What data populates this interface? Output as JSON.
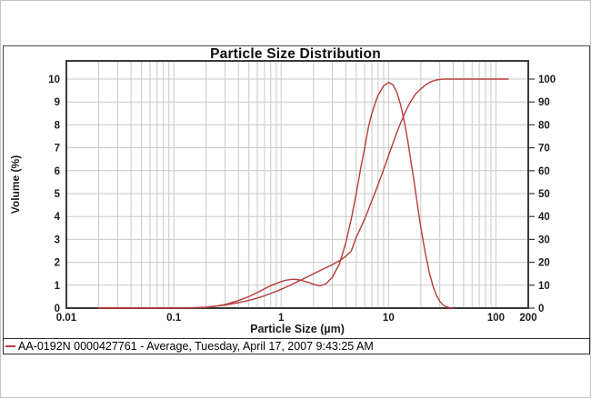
{
  "chart": {
    "title": "Particle Size Distribution",
    "x_axis": {
      "label": "Particle Size (µm)",
      "scale": "log",
      "min": 0.01,
      "max": 200,
      "tick_values": [
        0.01,
        0.1,
        1,
        10,
        100,
        200
      ],
      "tick_labels": [
        "0.01",
        "0.1",
        "1",
        "10",
        "100",
        "200"
      ]
    },
    "y_axis_left": {
      "label": "Volume (%)",
      "min": 0,
      "max": 10,
      "tick_values": [
        0,
        1,
        2,
        3,
        4,
        5,
        6,
        7,
        8,
        9,
        10
      ]
    },
    "y_axis_right": {
      "min": 0,
      "max": 100,
      "tick_values": [
        0,
        10,
        20,
        30,
        40,
        50,
        60,
        70,
        80,
        90,
        100
      ]
    },
    "grid_color": "#c9c9c9",
    "frame_color": "#3a3a3a",
    "series_color": "#b83b3b"
  },
  "legend": {
    "swatch_color": "#b83b3b",
    "label": "AA-0192N 0000427761 - Average, Tuesday, April 17, 2007 9:43:25 AM"
  },
  "chart_data": {
    "type": "line",
    "title": "Particle Size Distribution",
    "xlabel": "Particle Size (µm)",
    "ylabel": "Volume (%)",
    "x_scale": "log",
    "xlim": [
      0.01,
      200
    ],
    "ylim_left": [
      0,
      10.8
    ],
    "ylim_right": [
      0,
      108
    ],
    "grid": true,
    "legend_position": "bottom",
    "series": [
      {
        "name": "volume-density",
        "y_axis": "left",
        "points": [
          [
            0.02,
            0
          ],
          [
            0.05,
            0
          ],
          [
            0.1,
            0
          ],
          [
            0.15,
            0.01
          ],
          [
            0.2,
            0.03
          ],
          [
            0.25,
            0.09
          ],
          [
            0.3,
            0.16
          ],
          [
            0.35,
            0.25
          ],
          [
            0.4,
            0.33
          ],
          [
            0.5,
            0.5
          ],
          [
            0.6,
            0.68
          ],
          [
            0.7,
            0.84
          ],
          [
            0.8,
            0.98
          ],
          [
            0.9,
            1.08
          ],
          [
            1.0,
            1.16
          ],
          [
            1.1,
            1.22
          ],
          [
            1.3,
            1.26
          ],
          [
            1.5,
            1.23
          ],
          [
            1.8,
            1.12
          ],
          [
            2.0,
            1.04
          ],
          [
            2.3,
            0.97
          ],
          [
            2.6,
            1.05
          ],
          [
            3.0,
            1.35
          ],
          [
            3.5,
            1.95
          ],
          [
            4.0,
            2.85
          ],
          [
            4.5,
            3.9
          ],
          [
            5.0,
            5.0
          ],
          [
            5.5,
            6.1
          ],
          [
            6.0,
            7.0
          ],
          [
            6.5,
            7.9
          ],
          [
            7.0,
            8.5
          ],
          [
            7.5,
            8.95
          ],
          [
            8.0,
            9.3
          ],
          [
            9.0,
            9.7
          ],
          [
            10.0,
            9.85
          ],
          [
            11.0,
            9.75
          ],
          [
            12.0,
            9.4
          ],
          [
            13.0,
            8.85
          ],
          [
            14.0,
            8.15
          ],
          [
            15.0,
            7.4
          ],
          [
            16.0,
            6.55
          ],
          [
            17.0,
            5.75
          ],
          [
            18.0,
            4.95
          ],
          [
            20.0,
            3.5
          ],
          [
            22.0,
            2.4
          ],
          [
            24.0,
            1.55
          ],
          [
            26.0,
            0.95
          ],
          [
            28.0,
            0.55
          ],
          [
            30.0,
            0.3
          ],
          [
            32.0,
            0.15
          ],
          [
            34.0,
            0.07
          ],
          [
            36.0,
            0.03
          ],
          [
            38.0,
            0.01
          ],
          [
            40.0,
            0
          ]
        ]
      },
      {
        "name": "cumulative-volume-undersize",
        "y_axis": "right",
        "points": [
          [
            0.02,
            0
          ],
          [
            0.05,
            0
          ],
          [
            0.1,
            0
          ],
          [
            0.15,
            0.1
          ],
          [
            0.2,
            0.4
          ],
          [
            0.3,
            1.3
          ],
          [
            0.4,
            2.4
          ],
          [
            0.5,
            3.4
          ],
          [
            0.6,
            4.4
          ],
          [
            0.7,
            5.4
          ],
          [
            0.8,
            6.4
          ],
          [
            0.9,
            7.3
          ],
          [
            1.0,
            8.2
          ],
          [
            1.2,
            9.9
          ],
          [
            1.4,
            11.4
          ],
          [
            1.6,
            12.7
          ],
          [
            1.8,
            13.9
          ],
          [
            2.0,
            15
          ],
          [
            2.3,
            16.4
          ],
          [
            2.6,
            17.6
          ],
          [
            3.0,
            19
          ],
          [
            3.5,
            20.7
          ],
          [
            4.0,
            22.6
          ],
          [
            4.5,
            25
          ],
          [
            5.0,
            31
          ],
          [
            5.5,
            35
          ],
          [
            6.0,
            39
          ],
          [
            6.5,
            43
          ],
          [
            7.0,
            47
          ],
          [
            7.5,
            50.5
          ],
          [
            8.0,
            54
          ],
          [
            9.0,
            60.5
          ],
          [
            10.0,
            66.5
          ],
          [
            11.0,
            72
          ],
          [
            12.0,
            77
          ],
          [
            13.0,
            81
          ],
          [
            14.0,
            84.5
          ],
          [
            15.0,
            87.5
          ],
          [
            16.0,
            90
          ],
          [
            17.0,
            92
          ],
          [
            18.0,
            93.7
          ],
          [
            20.0,
            95.7
          ],
          [
            22.0,
            97.4
          ],
          [
            24.0,
            98.5
          ],
          [
            26.0,
            99.2
          ],
          [
            28.0,
            99.6
          ],
          [
            30.0,
            99.85
          ],
          [
            32.0,
            99.95
          ],
          [
            35.0,
            100
          ],
          [
            40.0,
            100
          ],
          [
            60.0,
            100
          ],
          [
            90.0,
            100
          ],
          [
            130.0,
            100
          ]
        ]
      }
    ]
  }
}
